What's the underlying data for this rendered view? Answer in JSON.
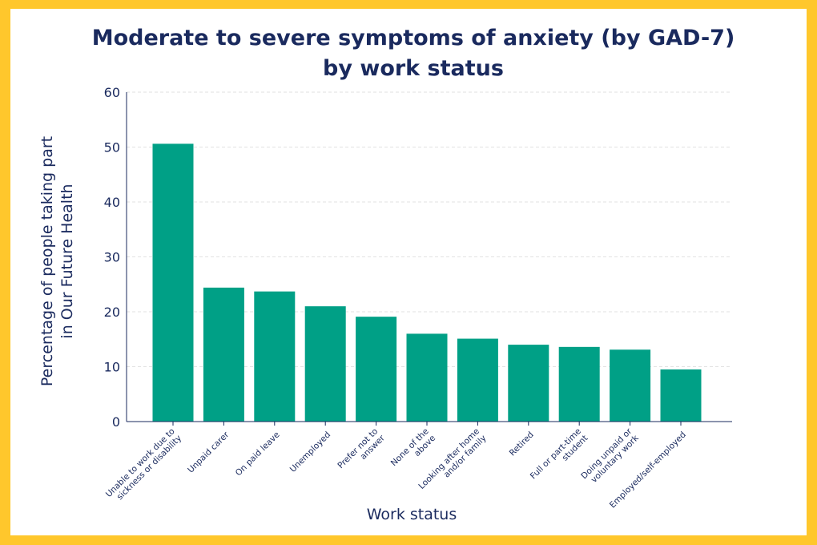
{
  "chart_data": {
    "type": "bar",
    "title": [
      "Moderate to severe symptoms of anxiety (by GAD-7)",
      "by work status"
    ],
    "xlabel": "Work status",
    "ylabel": [
      "Percentage of people taking part",
      "in Our Future Health"
    ],
    "ylim": [
      0,
      60
    ],
    "yticks": [
      "0",
      "10",
      "20",
      "30",
      "40",
      "50",
      "60"
    ],
    "grid": true,
    "categories": [
      [
        "Unable to work due to",
        "sickness or disability"
      ],
      [
        "Unpaid carer"
      ],
      [
        "On paid leave"
      ],
      [
        "Unemployed"
      ],
      [
        "Prefer not to",
        "answer"
      ],
      [
        "None of the",
        "above"
      ],
      [
        "Looking after home",
        "and/or family"
      ],
      [
        "Retired"
      ],
      [
        "Full or part-time",
        "student"
      ],
      [
        "Doing unpaid or",
        "voluntary work"
      ],
      [
        "Employed/self-employed"
      ]
    ],
    "values": [
      50.6,
      24.4,
      23.7,
      21.0,
      19.1,
      16.0,
      15.1,
      14.0,
      13.6,
      13.1,
      9.5
    ],
    "bar_color": "#00a086",
    "border_color": "#ffc72c"
  }
}
